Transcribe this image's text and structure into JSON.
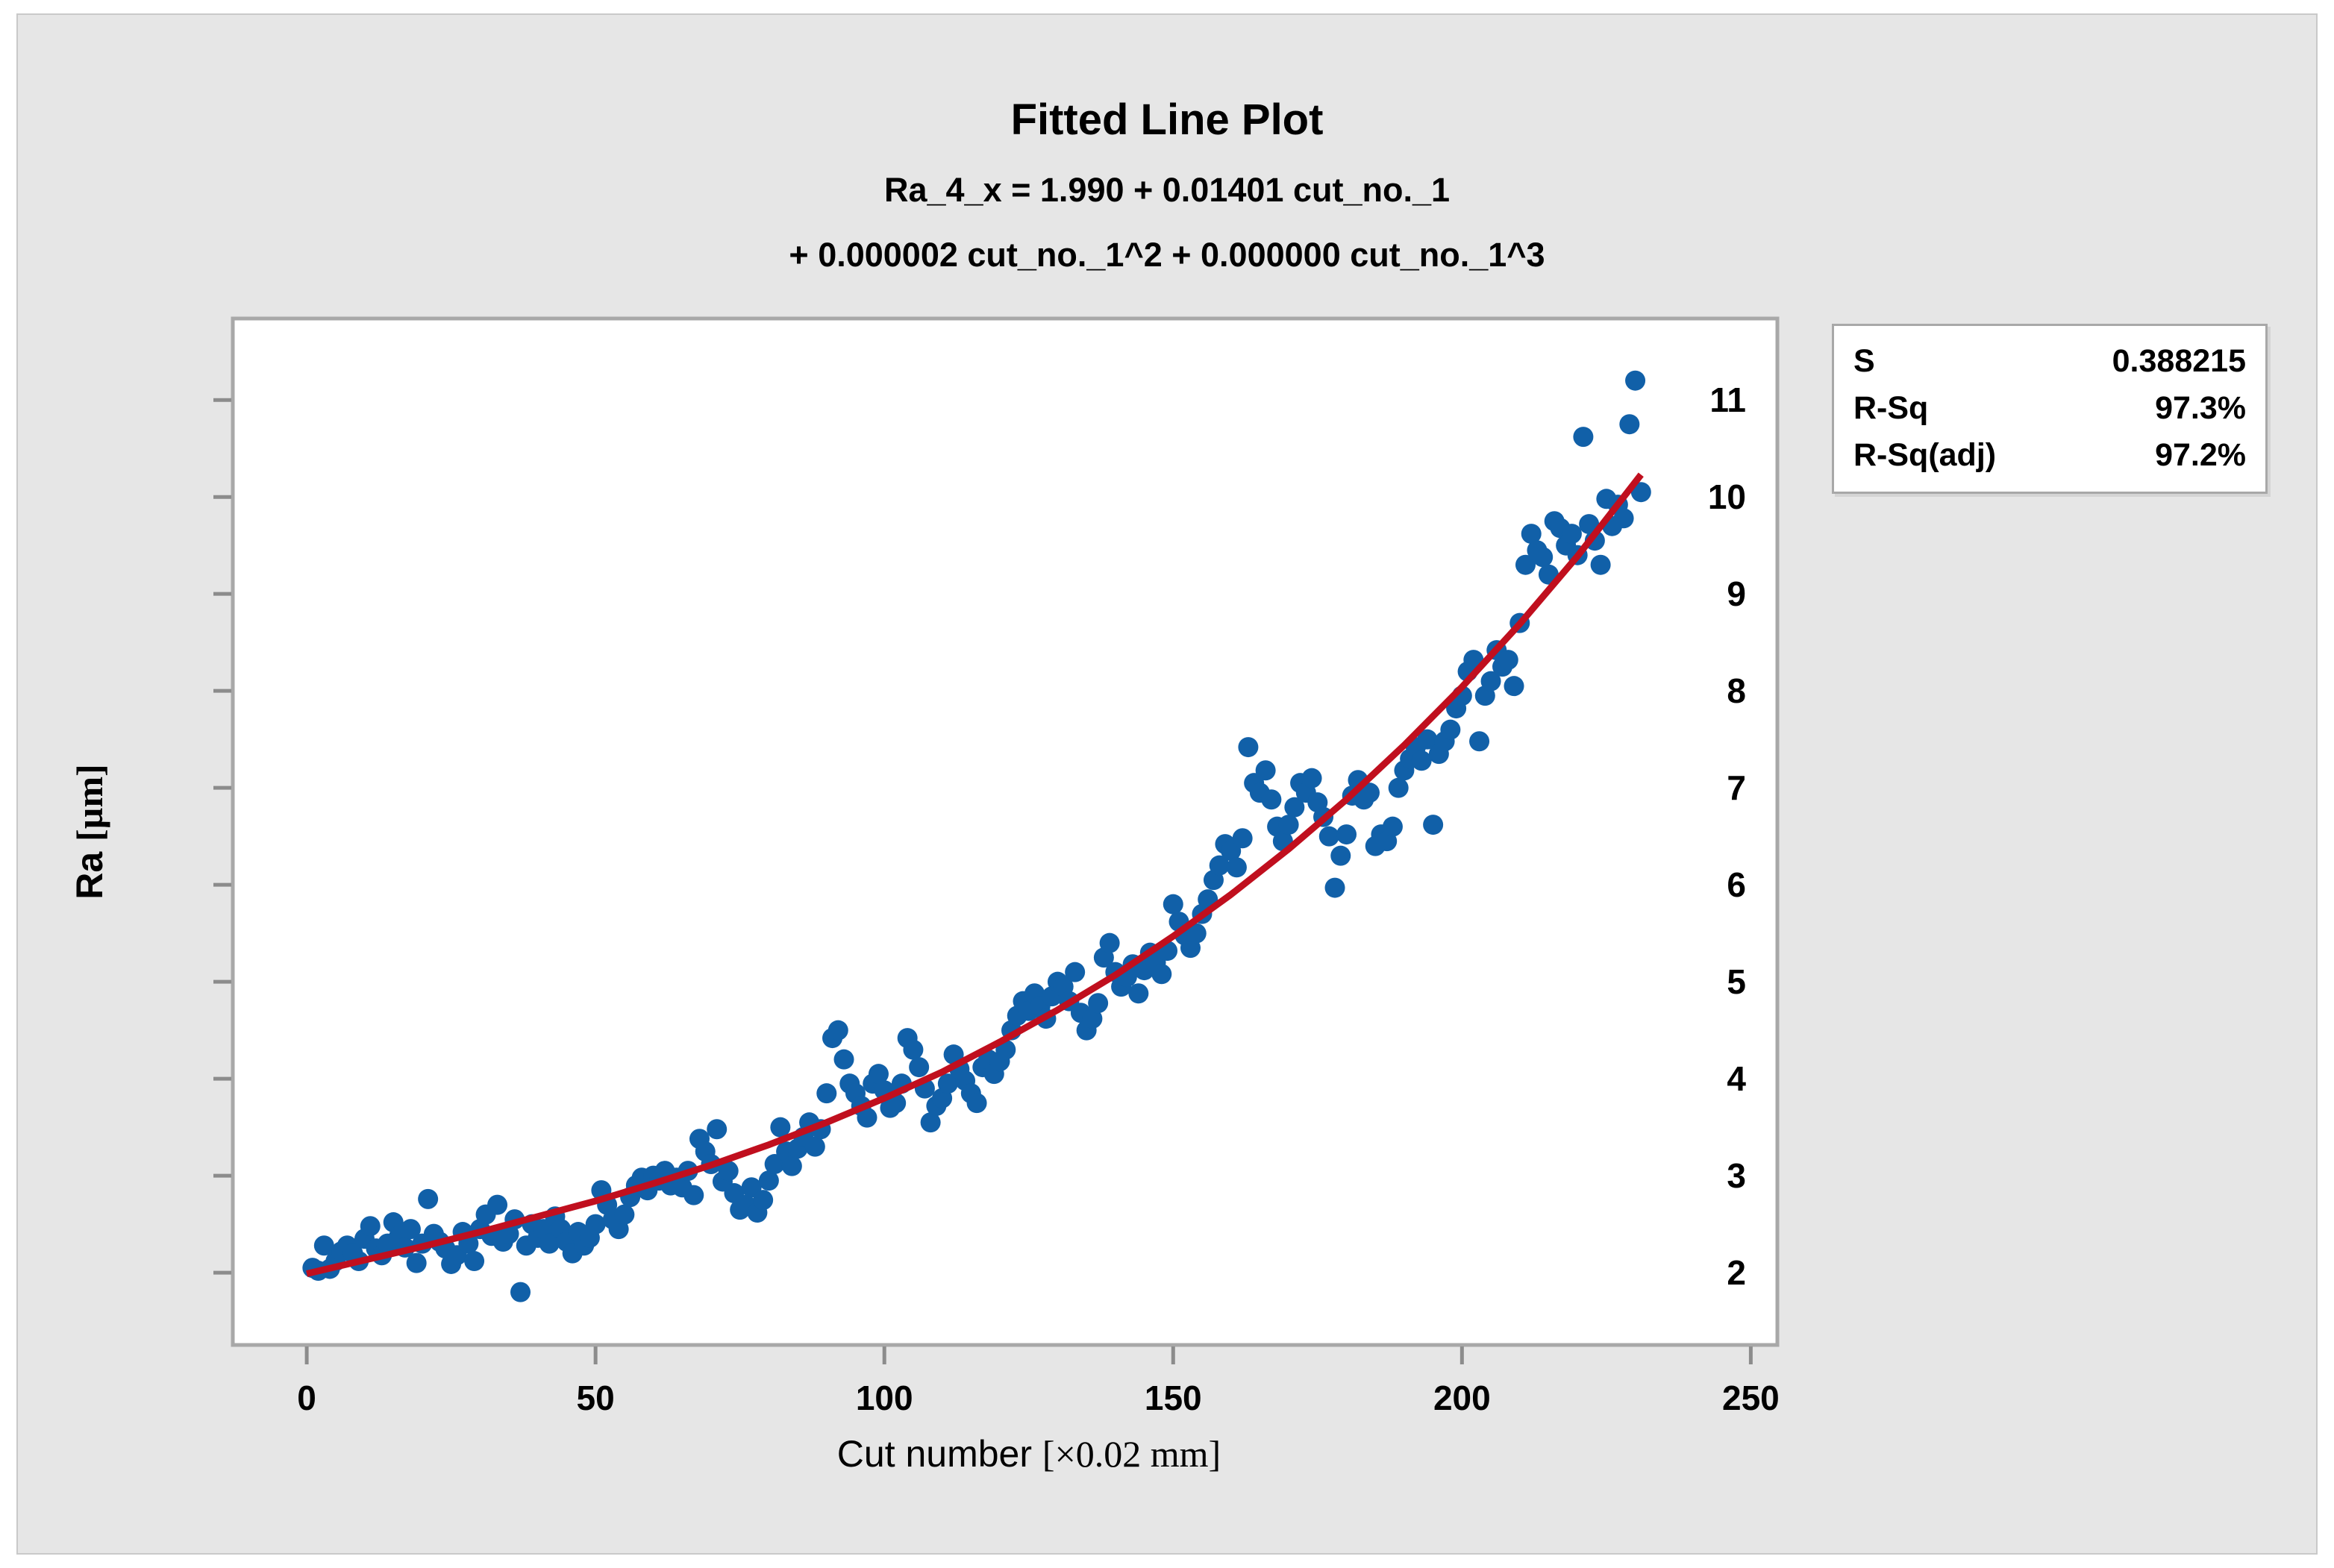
{
  "panel_bg": "#e6e6e6",
  "chart_data": {
    "type": "scatter",
    "title": "Fitted Line Plot",
    "subtitle_lines": [
      "Ra_4_x = 1.990 + 0.01401 cut_no._1",
      "+ 0.000002 cut_no._1^2 + 0.000000 cut_no._1^3"
    ],
    "xlabel": {
      "text": "Cut number ",
      "unit": "[×0.02 mm]"
    },
    "ylabel": {
      "text": "Ra ",
      "unit": "[µm]"
    },
    "x_ticks": [
      0,
      50,
      100,
      150,
      200,
      250
    ],
    "y_ticks": [
      2,
      3,
      4,
      5,
      6,
      7,
      8,
      9,
      10,
      11
    ],
    "xlim": [
      -12.8,
      254.6
    ],
    "ylim": [
      1.255,
      11.84
    ],
    "grid": false,
    "legend_position": "outside-top-right",
    "point_color": "#1160a8",
    "line_color": "#c00f1e",
    "frame_color": "#a8a8a8",
    "tick_color": "#8c8c8c",
    "marker_radius": 13.5,
    "fit_line": [
      [
        0,
        1.99
      ],
      [
        10,
        2.13
      ],
      [
        20,
        2.27
      ],
      [
        30,
        2.42
      ],
      [
        40,
        2.58
      ],
      [
        50,
        2.74
      ],
      [
        60,
        2.92
      ],
      [
        70,
        3.11
      ],
      [
        80,
        3.32
      ],
      [
        90,
        3.55
      ],
      [
        100,
        3.8
      ],
      [
        110,
        4.07
      ],
      [
        120,
        4.38
      ],
      [
        130,
        4.71
      ],
      [
        140,
        5.07
      ],
      [
        150,
        5.47
      ],
      [
        160,
        5.9
      ],
      [
        170,
        6.37
      ],
      [
        180,
        6.88
      ],
      [
        190,
        7.44
      ],
      [
        200,
        8.04
      ],
      [
        210,
        8.69
      ],
      [
        220,
        9.39
      ],
      [
        231,
        10.23
      ]
    ],
    "points": [
      [
        1,
        2.05
      ],
      [
        2,
        2.02
      ],
      [
        3,
        2.28
      ],
      [
        4,
        2.04
      ],
      [
        5,
        2.12
      ],
      [
        6,
        2.22
      ],
      [
        7,
        2.28
      ],
      [
        8,
        2.2
      ],
      [
        9,
        2.12
      ],
      [
        10,
        2.35
      ],
      [
        11,
        2.48
      ],
      [
        12,
        2.25
      ],
      [
        13,
        2.18
      ],
      [
        14,
        2.3
      ],
      [
        15,
        2.52
      ],
      [
        16,
        2.38
      ],
      [
        17,
        2.26
      ],
      [
        18,
        2.45
      ],
      [
        19,
        2.1
      ],
      [
        20,
        2.3
      ],
      [
        21,
        2.76
      ],
      [
        22,
        2.4
      ],
      [
        23,
        2.32
      ],
      [
        24,
        2.25
      ],
      [
        25,
        2.09
      ],
      [
        26,
        2.18
      ],
      [
        27,
        2.42
      ],
      [
        28,
        2.3
      ],
      [
        29,
        2.12
      ],
      [
        30,
        2.45
      ],
      [
        31,
        2.6
      ],
      [
        32,
        2.38
      ],
      [
        33,
        2.7
      ],
      [
        34,
        2.32
      ],
      [
        35,
        2.4
      ],
      [
        36,
        2.55
      ],
      [
        37,
        1.8
      ],
      [
        38,
        2.28
      ],
      [
        39,
        2.5
      ],
      [
        40,
        2.36
      ],
      [
        41,
        2.45
      ],
      [
        42,
        2.3
      ],
      [
        43,
        2.58
      ],
      [
        44,
        2.45
      ],
      [
        45,
        2.32
      ],
      [
        46,
        2.2
      ],
      [
        47,
        2.42
      ],
      [
        48,
        2.28
      ],
      [
        49,
        2.36
      ],
      [
        50,
        2.5
      ],
      [
        51,
        2.85
      ],
      [
        52,
        2.7
      ],
      [
        53,
        2.55
      ],
      [
        54,
        2.45
      ],
      [
        55,
        2.6
      ],
      [
        56,
        2.78
      ],
      [
        57,
        2.9
      ],
      [
        58,
        2.98
      ],
      [
        59,
        2.85
      ],
      [
        60,
        3.0
      ],
      [
        61,
        2.95
      ],
      [
        62,
        3.05
      ],
      [
        63,
        2.9
      ],
      [
        64,
        2.98
      ],
      [
        65,
        2.88
      ],
      [
        66,
        3.05
      ],
      [
        67,
        2.8
      ],
      [
        68,
        3.38
      ],
      [
        69,
        3.25
      ],
      [
        70,
        3.12
      ],
      [
        71,
        3.48
      ],
      [
        72,
        2.94
      ],
      [
        73,
        3.05
      ],
      [
        74,
        2.82
      ],
      [
        75,
        2.65
      ],
      [
        76,
        2.7
      ],
      [
        77,
        2.88
      ],
      [
        78,
        2.62
      ],
      [
        79,
        2.75
      ],
      [
        80,
        2.95
      ],
      [
        81,
        3.12
      ],
      [
        82,
        3.5
      ],
      [
        83,
        3.25
      ],
      [
        84,
        3.1
      ],
      [
        85,
        3.28
      ],
      [
        86,
        3.4
      ],
      [
        87,
        3.55
      ],
      [
        88,
        3.3
      ],
      [
        89,
        3.48
      ],
      [
        90,
        3.85
      ],
      [
        91,
        4.42
      ],
      [
        92,
        4.5
      ],
      [
        93,
        4.2
      ],
      [
        94,
        3.95
      ],
      [
        95,
        3.85
      ],
      [
        96,
        3.72
      ],
      [
        97,
        3.6
      ],
      [
        98,
        3.95
      ],
      [
        99,
        4.05
      ],
      [
        100,
        3.88
      ],
      [
        101,
        3.7
      ],
      [
        102,
        3.75
      ],
      [
        103,
        3.95
      ],
      [
        104,
        4.42
      ],
      [
        105,
        4.3
      ],
      [
        106,
        4.12
      ],
      [
        107,
        3.9
      ],
      [
        108,
        3.55
      ],
      [
        109,
        3.72
      ],
      [
        110,
        3.8
      ],
      [
        111,
        3.95
      ],
      [
        112,
        4.25
      ],
      [
        113,
        4.1
      ],
      [
        114,
        3.98
      ],
      [
        115,
        3.85
      ],
      [
        116,
        3.75
      ],
      [
        117,
        4.12
      ],
      [
        118,
        4.2
      ],
      [
        119,
        4.05
      ],
      [
        120,
        4.18
      ],
      [
        121,
        4.3
      ],
      [
        122,
        4.5
      ],
      [
        123,
        4.65
      ],
      [
        124,
        4.8
      ],
      [
        125,
        4.7
      ],
      [
        126,
        4.88
      ],
      [
        127,
        4.75
      ],
      [
        128,
        4.62
      ],
      [
        129,
        4.85
      ],
      [
        130,
        5.0
      ],
      [
        131,
        4.95
      ],
      [
        132,
        4.8
      ],
      [
        133,
        5.1
      ],
      [
        134,
        4.68
      ],
      [
        135,
        4.5
      ],
      [
        136,
        4.62
      ],
      [
        137,
        4.78
      ],
      [
        138,
        5.25
      ],
      [
        139,
        5.4
      ],
      [
        140,
        5.1
      ],
      [
        141,
        4.95
      ],
      [
        142,
        5.05
      ],
      [
        143,
        5.18
      ],
      [
        144,
        4.88
      ],
      [
        145,
        5.12
      ],
      [
        146,
        5.3
      ],
      [
        147,
        5.2
      ],
      [
        148,
        5.08
      ],
      [
        149,
        5.32
      ],
      [
        150,
        5.8
      ],
      [
        151,
        5.62
      ],
      [
        152,
        5.48
      ],
      [
        153,
        5.35
      ],
      [
        154,
        5.5
      ],
      [
        155,
        5.7
      ],
      [
        156,
        5.85
      ],
      [
        157,
        6.05
      ],
      [
        158,
        6.2
      ],
      [
        159,
        6.42
      ],
      [
        160,
        6.35
      ],
      [
        161,
        6.18
      ],
      [
        162,
        6.48
      ],
      [
        163,
        7.42
      ],
      [
        164,
        7.05
      ],
      [
        165,
        6.95
      ],
      [
        166,
        7.18
      ],
      [
        167,
        6.88
      ],
      [
        168,
        6.6
      ],
      [
        169,
        6.45
      ],
      [
        170,
        6.62
      ],
      [
        171,
        6.8
      ],
      [
        172,
        7.05
      ],
      [
        173,
        6.95
      ],
      [
        174,
        7.1
      ],
      [
        175,
        6.85
      ],
      [
        176,
        6.7
      ],
      [
        177,
        6.5
      ],
      [
        178,
        5.97
      ],
      [
        179,
        6.3
      ],
      [
        180,
        6.52
      ],
      [
        181,
        6.92
      ],
      [
        182,
        7.08
      ],
      [
        183,
        6.88
      ],
      [
        184,
        6.95
      ],
      [
        185,
        6.4
      ],
      [
        186,
        6.52
      ],
      [
        187,
        6.45
      ],
      [
        188,
        6.6
      ],
      [
        189,
        7.0
      ],
      [
        190,
        7.18
      ],
      [
        191,
        7.3
      ],
      [
        192,
        7.42
      ],
      [
        193,
        7.28
      ],
      [
        194,
        7.5
      ],
      [
        195,
        6.62
      ],
      [
        196,
        7.35
      ],
      [
        197,
        7.48
      ],
      [
        198,
        7.6
      ],
      [
        199,
        7.82
      ],
      [
        200,
        7.95
      ],
      [
        201,
        8.2
      ],
      [
        202,
        8.32
      ],
      [
        203,
        7.48
      ],
      [
        204,
        7.95
      ],
      [
        205,
        8.1
      ],
      [
        206,
        8.42
      ],
      [
        207,
        8.25
      ],
      [
        208,
        8.32
      ],
      [
        209,
        8.05
      ],
      [
        210,
        8.7
      ],
      [
        211,
        9.3
      ],
      [
        212,
        9.62
      ],
      [
        213,
        9.45
      ],
      [
        214,
        9.38
      ],
      [
        215,
        9.2
      ],
      [
        216,
        9.75
      ],
      [
        217,
        9.68
      ],
      [
        218,
        9.5
      ],
      [
        219,
        9.62
      ],
      [
        220,
        9.4
      ],
      [
        221,
        10.62
      ],
      [
        222,
        9.72
      ],
      [
        223,
        9.55
      ],
      [
        224,
        9.3
      ],
      [
        225,
        9.98
      ],
      [
        226,
        9.7
      ],
      [
        227,
        9.92
      ],
      [
        228,
        9.78
      ],
      [
        229,
        10.75
      ],
      [
        230,
        11.2
      ],
      [
        231,
        10.05
      ]
    ],
    "legend": {
      "rows": [
        {
          "label": "S",
          "value": "0.388215"
        },
        {
          "label": "R-Sq",
          "value": "97.3%"
        },
        {
          "label": "R-Sq(adj)",
          "value": "97.2%"
        }
      ]
    }
  }
}
